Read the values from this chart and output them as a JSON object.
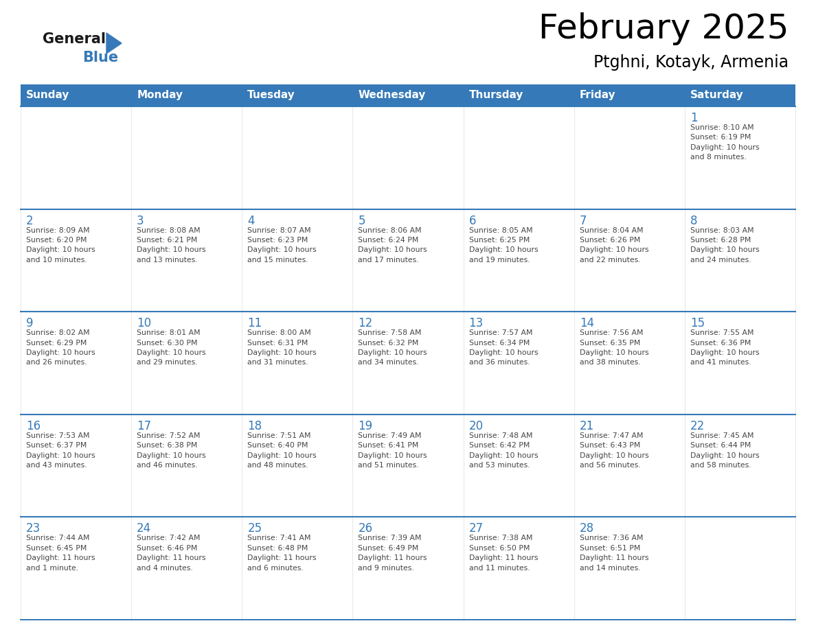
{
  "title": "February 2025",
  "subtitle": "Ptghni, Kotayk, Armenia",
  "days_of_week": [
    "Sunday",
    "Monday",
    "Tuesday",
    "Wednesday",
    "Thursday",
    "Friday",
    "Saturday"
  ],
  "header_color": "#3579b8",
  "header_text_color": "#ffffff",
  "bg_color": "#ffffff",
  "cell_bg_color": "#ffffff",
  "cell_border_color": "#3579b8",
  "day_num_color": "#3579b8",
  "text_color": "#444444",
  "title_color": "#000000",
  "subtitle_color": "#000000",
  "logo_general_color": "#1a1a1a",
  "logo_blue_color": "#3579b8",
  "logo_triangle_color": "#3579b8",
  "calendar_data": [
    [
      {
        "day": null,
        "text": ""
      },
      {
        "day": null,
        "text": ""
      },
      {
        "day": null,
        "text": ""
      },
      {
        "day": null,
        "text": ""
      },
      {
        "day": null,
        "text": ""
      },
      {
        "day": null,
        "text": ""
      },
      {
        "day": 1,
        "text": "Sunrise: 8:10 AM\nSunset: 6:19 PM\nDaylight: 10 hours\nand 8 minutes."
      }
    ],
    [
      {
        "day": 2,
        "text": "Sunrise: 8:09 AM\nSunset: 6:20 PM\nDaylight: 10 hours\nand 10 minutes."
      },
      {
        "day": 3,
        "text": "Sunrise: 8:08 AM\nSunset: 6:21 PM\nDaylight: 10 hours\nand 13 minutes."
      },
      {
        "day": 4,
        "text": "Sunrise: 8:07 AM\nSunset: 6:23 PM\nDaylight: 10 hours\nand 15 minutes."
      },
      {
        "day": 5,
        "text": "Sunrise: 8:06 AM\nSunset: 6:24 PM\nDaylight: 10 hours\nand 17 minutes."
      },
      {
        "day": 6,
        "text": "Sunrise: 8:05 AM\nSunset: 6:25 PM\nDaylight: 10 hours\nand 19 minutes."
      },
      {
        "day": 7,
        "text": "Sunrise: 8:04 AM\nSunset: 6:26 PM\nDaylight: 10 hours\nand 22 minutes."
      },
      {
        "day": 8,
        "text": "Sunrise: 8:03 AM\nSunset: 6:28 PM\nDaylight: 10 hours\nand 24 minutes."
      }
    ],
    [
      {
        "day": 9,
        "text": "Sunrise: 8:02 AM\nSunset: 6:29 PM\nDaylight: 10 hours\nand 26 minutes."
      },
      {
        "day": 10,
        "text": "Sunrise: 8:01 AM\nSunset: 6:30 PM\nDaylight: 10 hours\nand 29 minutes."
      },
      {
        "day": 11,
        "text": "Sunrise: 8:00 AM\nSunset: 6:31 PM\nDaylight: 10 hours\nand 31 minutes."
      },
      {
        "day": 12,
        "text": "Sunrise: 7:58 AM\nSunset: 6:32 PM\nDaylight: 10 hours\nand 34 minutes."
      },
      {
        "day": 13,
        "text": "Sunrise: 7:57 AM\nSunset: 6:34 PM\nDaylight: 10 hours\nand 36 minutes."
      },
      {
        "day": 14,
        "text": "Sunrise: 7:56 AM\nSunset: 6:35 PM\nDaylight: 10 hours\nand 38 minutes."
      },
      {
        "day": 15,
        "text": "Sunrise: 7:55 AM\nSunset: 6:36 PM\nDaylight: 10 hours\nand 41 minutes."
      }
    ],
    [
      {
        "day": 16,
        "text": "Sunrise: 7:53 AM\nSunset: 6:37 PM\nDaylight: 10 hours\nand 43 minutes."
      },
      {
        "day": 17,
        "text": "Sunrise: 7:52 AM\nSunset: 6:38 PM\nDaylight: 10 hours\nand 46 minutes."
      },
      {
        "day": 18,
        "text": "Sunrise: 7:51 AM\nSunset: 6:40 PM\nDaylight: 10 hours\nand 48 minutes."
      },
      {
        "day": 19,
        "text": "Sunrise: 7:49 AM\nSunset: 6:41 PM\nDaylight: 10 hours\nand 51 minutes."
      },
      {
        "day": 20,
        "text": "Sunrise: 7:48 AM\nSunset: 6:42 PM\nDaylight: 10 hours\nand 53 minutes."
      },
      {
        "day": 21,
        "text": "Sunrise: 7:47 AM\nSunset: 6:43 PM\nDaylight: 10 hours\nand 56 minutes."
      },
      {
        "day": 22,
        "text": "Sunrise: 7:45 AM\nSunset: 6:44 PM\nDaylight: 10 hours\nand 58 minutes."
      }
    ],
    [
      {
        "day": 23,
        "text": "Sunrise: 7:44 AM\nSunset: 6:45 PM\nDaylight: 11 hours\nand 1 minute."
      },
      {
        "day": 24,
        "text": "Sunrise: 7:42 AM\nSunset: 6:46 PM\nDaylight: 11 hours\nand 4 minutes."
      },
      {
        "day": 25,
        "text": "Sunrise: 7:41 AM\nSunset: 6:48 PM\nDaylight: 11 hours\nand 6 minutes."
      },
      {
        "day": 26,
        "text": "Sunrise: 7:39 AM\nSunset: 6:49 PM\nDaylight: 11 hours\nand 9 minutes."
      },
      {
        "day": 27,
        "text": "Sunrise: 7:38 AM\nSunset: 6:50 PM\nDaylight: 11 hours\nand 11 minutes."
      },
      {
        "day": 28,
        "text": "Sunrise: 7:36 AM\nSunset: 6:51 PM\nDaylight: 11 hours\nand 14 minutes."
      },
      {
        "day": null,
        "text": ""
      }
    ]
  ]
}
